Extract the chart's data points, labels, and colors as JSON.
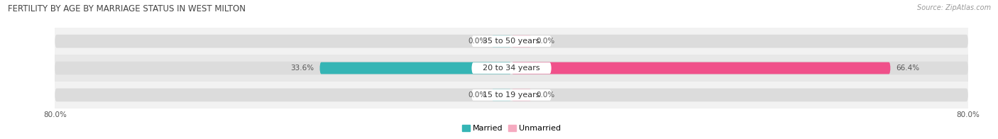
{
  "title": "FERTILITY BY AGE BY MARRIAGE STATUS IN WEST MILTON",
  "source": "Source: ZipAtlas.com",
  "categories": [
    "15 to 19 years",
    "20 to 34 years",
    "35 to 50 years"
  ],
  "married_values": [
    0.0,
    33.6,
    0.0
  ],
  "unmarried_values": [
    0.0,
    66.4,
    0.0
  ],
  "max_value": 80.0,
  "married_color_full": "#35b5b5",
  "married_color_stub": "#90d8d8",
  "unmarried_color_full": "#f0508a",
  "unmarried_color_stub": "#f5aac0",
  "row_bg_colors": [
    "#f2f2f2",
    "#e8e8e8",
    "#f2f2f2"
  ],
  "bg_bar_color": "#e0e0e0",
  "title_fontsize": 8.5,
  "label_fontsize": 8,
  "value_fontsize": 7.5,
  "tick_fontsize": 7.5,
  "source_fontsize": 7,
  "bar_height": 0.52,
  "figsize": [
    14.06,
    1.96
  ],
  "dpi": 100
}
